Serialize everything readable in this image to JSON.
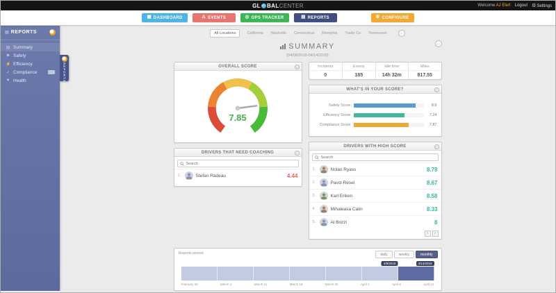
{
  "top_bar": {
    "logo_part1": "GL",
    "logo_part2": "BAL",
    "logo_part3": "CENTER",
    "welcome_prefix": "Welcome",
    "user_name": "AJ Elert",
    "logout_label": "Logout",
    "settings_label": "Settings"
  },
  "icons": {
    "gear": "⚙",
    "info": "i",
    "prev": "‹",
    "next": "›",
    "options": "…"
  },
  "nav": {
    "active": "REPORTS",
    "items": [
      {
        "label": "DASHBOARD",
        "icon": "▦",
        "color": "#4eb4e6"
      },
      {
        "label": "EVENTS",
        "icon": "⚠",
        "color": "#e87470"
      },
      {
        "label": "GPS TRACKER",
        "icon": "◎",
        "color": "#3cb559"
      },
      {
        "label": "REPORTS",
        "icon": "▤",
        "color": "#3f4e7e"
      },
      {
        "label": "CONFIGURE",
        "icon": "⚙",
        "color": "#f2a933"
      }
    ]
  },
  "sidebar": {
    "title": "REPORTS",
    "drawer_label": "REPORTS",
    "active": "Summary",
    "items": [
      {
        "label": "Summary",
        "icon": "▤"
      },
      {
        "label": "Safety",
        "icon": "⚑"
      },
      {
        "label": "Efficiency",
        "icon": "⚡"
      },
      {
        "label": "Compliance",
        "icon": "✓"
      },
      {
        "label": "Health",
        "icon": "♥"
      }
    ]
  },
  "tabs": {
    "active": "All Locations",
    "items": [
      "All Locations",
      "California",
      "Nashville",
      "Connecticut",
      "Memphis",
      "Trade Co",
      "Tennessee"
    ]
  },
  "title": {
    "text": "SUMMARY",
    "subtitle": "(04/08/2018-04/14/2018)"
  },
  "overall_score": {
    "header": "OVERALL SCORE",
    "value": "7.85",
    "max": 10,
    "value_color": "#4caf50",
    "gauge_colors": [
      "#dd4b39",
      "#ec8333",
      "#f2c14b",
      "#a6ce39",
      "#47ba37"
    ]
  },
  "stats": {
    "columns": [
      {
        "label": "Incidents",
        "value": "0"
      },
      {
        "label": "Events",
        "value": "185"
      },
      {
        "label": "Idle time",
        "value": "14h 32m"
      },
      {
        "label": "Miles",
        "value": "817.55"
      }
    ]
  },
  "score_breakdown": {
    "header": "WHAT'S IN YOUR SCORE?",
    "max": 10,
    "bars": [
      {
        "label": "Safety Score",
        "value": 8.9,
        "display": "8.9",
        "color": "#5b9bd5"
      },
      {
        "label": "Efficiency Score",
        "value": 7.24,
        "display": "7.24",
        "color": "#45b79c"
      },
      {
        "label": "Compliance Score",
        "value": 7.87,
        "display": "7.87",
        "color": "#f2a933"
      }
    ]
  },
  "coaching": {
    "header": "DRIVERS THAT NEED COACHING",
    "search_placeholder": "Search",
    "score_color": "#e0635c",
    "drivers": [
      {
        "rank": "1.",
        "name": "Stefan Radeau",
        "score": "4.44"
      }
    ]
  },
  "high_score": {
    "header": "DRIVERS WITH HIGH SCORE",
    "search_placeholder": "Search",
    "score_color": "#35b8a4",
    "drivers": [
      {
        "rank": "1.",
        "name": "Nolan Ryass",
        "score": "8.78"
      },
      {
        "rank": "2.",
        "name": "Pavol Resel",
        "score": "8.67"
      },
      {
        "rank": "3.",
        "name": "Karl Eriken",
        "score": "8.58"
      },
      {
        "rank": "4.",
        "name": "Mihaleasa Calin",
        "score": "8.33"
      },
      {
        "rank": "5.",
        "name": "Al Brizzi",
        "score": "8"
      }
    ]
  },
  "reports_period": {
    "label": "Reports period",
    "buttons": [
      "daily",
      "weekly",
      "monthly"
    ],
    "active": "monthly",
    "highlight_index": 6,
    "tooltips": [
      "4/8/2018",
      "4/14/2018"
    ],
    "dates": [
      "February 26",
      "March 4",
      "March 11",
      "March 18",
      "March 25",
      "April 1",
      "April 8",
      "April 15"
    ]
  }
}
